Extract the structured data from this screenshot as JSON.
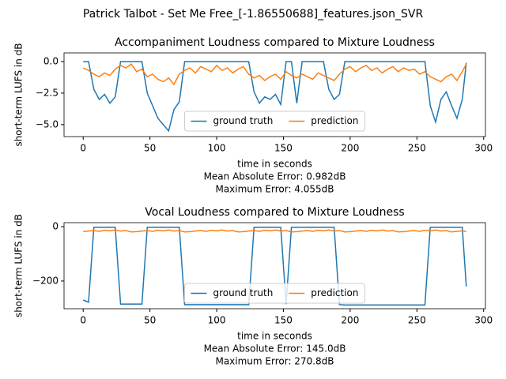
{
  "title": "Patrick Talbot - Set Me Free_[-1.86550688]_features.json_SVR",
  "chart_data": [
    {
      "type": "line",
      "title": "Accompaniment Loudness compared to Mixture Loudness",
      "xlabel": "time in seconds",
      "ylabel": "short-term LUFS in dB",
      "annotations": [
        "Mean Absolute Error: 0.982dB",
        "Maximum Error: 4.055dB"
      ],
      "x": [
        0,
        4,
        8,
        12,
        16,
        20,
        24,
        28,
        32,
        36,
        40,
        44,
        48,
        52,
        56,
        60,
        64,
        68,
        72,
        76,
        80,
        84,
        88,
        92,
        96,
        100,
        104,
        108,
        112,
        116,
        120,
        124,
        128,
        132,
        136,
        140,
        144,
        148,
        152,
        156,
        160,
        164,
        168,
        172,
        176,
        180,
        184,
        188,
        192,
        196,
        200,
        204,
        208,
        212,
        216,
        220,
        224,
        228,
        232,
        236,
        240,
        244,
        248,
        252,
        256,
        260,
        264,
        268,
        272,
        276,
        280,
        284,
        287
      ],
      "series": [
        {
          "name": "ground truth",
          "color": "#1f77b4",
          "values": [
            0,
            0,
            -2.2,
            -3.0,
            -2.6,
            -3.3,
            -2.8,
            0,
            0,
            0,
            0,
            0,
            -2.5,
            -3.5,
            -4.5,
            -5.0,
            -5.5,
            -3.8,
            -3.2,
            0,
            0,
            0,
            0,
            0,
            0,
            0,
            0,
            0,
            0,
            0,
            0,
            0,
            -2.4,
            -3.3,
            -2.8,
            -3.0,
            -2.6,
            -3.4,
            0,
            0,
            -3.3,
            0,
            0,
            0,
            0,
            0,
            -2.2,
            -3.0,
            -2.6,
            0,
            0,
            0,
            0,
            0,
            0,
            0,
            0,
            0,
            0,
            0,
            0,
            0,
            0,
            0,
            0,
            -3.5,
            -4.8,
            -3.0,
            -2.4,
            -3.5,
            -4.5,
            -3.0,
            -0.1
          ]
        },
        {
          "name": "prediction",
          "color": "#ff7f0e",
          "values": [
            -0.5,
            -0.7,
            -1.0,
            -1.2,
            -0.9,
            -1.1,
            -0.6,
            -0.3,
            -0.5,
            -0.2,
            -0.8,
            -0.6,
            -1.2,
            -1.0,
            -1.4,
            -1.6,
            -1.3,
            -1.8,
            -1.0,
            -0.7,
            -0.5,
            -0.9,
            -0.4,
            -0.6,
            -0.8,
            -0.3,
            -0.7,
            -0.5,
            -0.9,
            -0.6,
            -0.4,
            -1.0,
            -1.3,
            -1.1,
            -1.5,
            -1.2,
            -1.0,
            -1.4,
            -0.8,
            -1.1,
            -1.3,
            -1.0,
            -1.2,
            -1.4,
            -0.9,
            -1.1,
            -1.3,
            -1.5,
            -1.0,
            -0.6,
            -0.4,
            -0.8,
            -0.5,
            -0.3,
            -0.7,
            -0.5,
            -0.9,
            -0.6,
            -0.4,
            -0.8,
            -0.5,
            -0.7,
            -0.6,
            -1.0,
            -0.8,
            -1.2,
            -1.4,
            -1.6,
            -1.2,
            -1.0,
            -1.5,
            -0.8,
            -0.2
          ]
        }
      ],
      "xlim": [
        -14.35,
        301.35
      ],
      "xticks": [
        0,
        50,
        100,
        150,
        200,
        250,
        300
      ],
      "ylim": [
        -5.95,
        0.69
      ],
      "yticks": [
        {
          "value": 0,
          "label": "0.0"
        },
        {
          "value": -2.5,
          "label": "−2.5"
        },
        {
          "value": -5,
          "label": "−5.0"
        }
      ],
      "legend": "lower center"
    },
    {
      "type": "line",
      "title": "Vocal Loudness compared to Mixture Loudness",
      "xlabel": "time in seconds",
      "ylabel": "short-term LUFS in dB",
      "annotations": [
        "Mean Absolute Error: 145.0dB",
        "Maximum Error: 270.8dB"
      ],
      "x": [
        0,
        4,
        8,
        12,
        16,
        20,
        24,
        28,
        32,
        36,
        40,
        44,
        48,
        52,
        56,
        60,
        64,
        68,
        72,
        76,
        80,
        84,
        88,
        92,
        96,
        100,
        104,
        108,
        112,
        116,
        120,
        124,
        128,
        132,
        136,
        140,
        144,
        148,
        152,
        156,
        160,
        164,
        168,
        172,
        176,
        180,
        184,
        188,
        192,
        196,
        200,
        204,
        208,
        212,
        216,
        220,
        224,
        228,
        232,
        236,
        240,
        244,
        248,
        252,
        256,
        260,
        264,
        268,
        272,
        276,
        280,
        284,
        287
      ],
      "series": [
        {
          "name": "ground truth",
          "color": "#1f77b4",
          "values": [
            -270,
            -278,
            -2,
            -2,
            -2,
            -2,
            -2,
            -285,
            -285,
            -285,
            -285,
            -285,
            -2,
            -2,
            -2,
            -2,
            -2,
            -2,
            -2,
            -287,
            -287,
            -287,
            -287,
            -287,
            -287,
            -287,
            -287,
            -287,
            -287,
            -287,
            -287,
            -287,
            -2,
            -2,
            -2,
            -2,
            -2,
            -2,
            -285,
            -2,
            -2,
            -2,
            -2,
            -2,
            -2,
            -2,
            -2,
            -2,
            -287,
            -288,
            -288,
            -288,
            -288,
            -288,
            -288,
            -288,
            -288,
            -288,
            -288,
            -288,
            -288,
            -288,
            -288,
            -288,
            -288,
            -2,
            -2,
            -2,
            -2,
            -2,
            -2,
            -2,
            -220
          ]
        },
        {
          "name": "prediction",
          "color": "#ff7f0e",
          "values": [
            -18,
            -16,
            -14,
            -17,
            -13,
            -15,
            -12,
            -16,
            -14,
            -19,
            -18,
            -16,
            -14,
            -17,
            -13,
            -15,
            -12,
            -16,
            -14,
            -19,
            -18,
            -16,
            -14,
            -17,
            -13,
            -15,
            -12,
            -16,
            -14,
            -19,
            -18,
            -16,
            -14,
            -17,
            -13,
            -15,
            -12,
            -16,
            -14,
            -19,
            -18,
            -16,
            -14,
            -17,
            -13,
            -15,
            -12,
            -16,
            -14,
            -19,
            -18,
            -16,
            -14,
            -17,
            -13,
            -15,
            -12,
            -16,
            -14,
            -19,
            -18,
            -16,
            -14,
            -17,
            -13,
            -15,
            -12,
            -16,
            -14,
            -19,
            -17,
            -15,
            -18
          ]
        }
      ],
      "xlim": [
        -14.35,
        301.35
      ],
      "xticks": [
        0,
        50,
        100,
        150,
        200,
        250,
        300
      ],
      "ylim": [
        -302,
        15
      ],
      "yticks": [
        0,
        {
          "value": -200,
          "label": "−200"
        }
      ],
      "legend": "lower center"
    }
  ]
}
